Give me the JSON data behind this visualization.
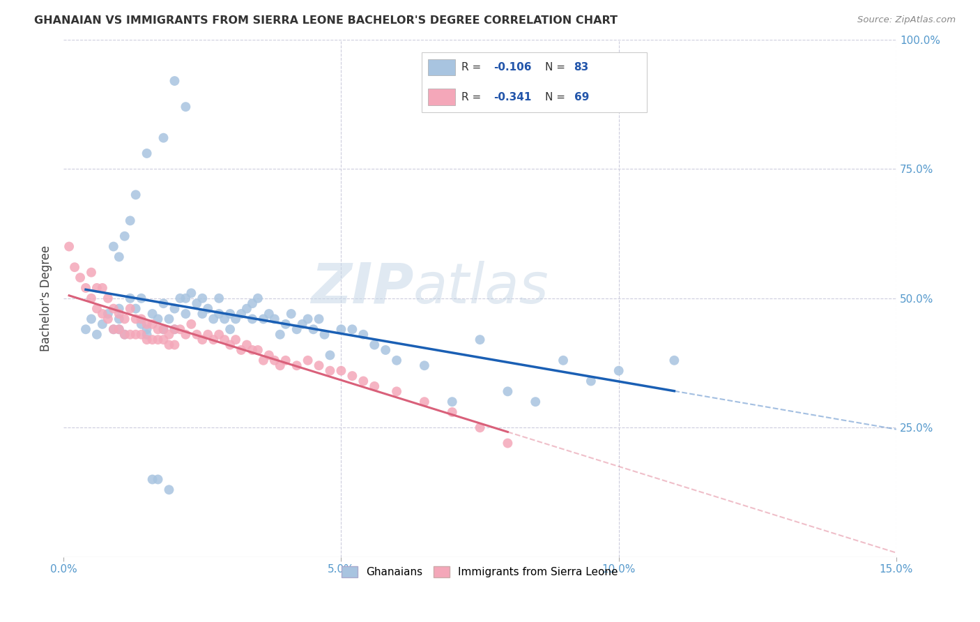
{
  "title": "GHANAIAN VS IMMIGRANTS FROM SIERRA LEONE BACHELOR'S DEGREE CORRELATION CHART",
  "source": "Source: ZipAtlas.com",
  "ylabel": "Bachelor's Degree",
  "xlim": [
    0.0,
    0.15
  ],
  "ylim": [
    0.0,
    1.0
  ],
  "xtick_labels": [
    "0.0%",
    "5.0%",
    "10.0%",
    "15.0%"
  ],
  "xtick_vals": [
    0.0,
    0.05,
    0.1,
    0.15
  ],
  "ytick_labels": [
    "25.0%",
    "50.0%",
    "75.0%",
    "100.0%"
  ],
  "ytick_vals": [
    0.25,
    0.5,
    0.75,
    1.0
  ],
  "ghanaian_color": "#a8c4e0",
  "sierra_leone_color": "#f4a7b9",
  "ghanaian_line_color": "#1a5fb4",
  "sierra_leone_line_color": "#d9607a",
  "watermark_zip": "ZIP",
  "watermark_atlas": "atlas",
  "legend_items": [
    {
      "color": "#a8c4e0",
      "R_label": "R = ",
      "R_val": "-0.106",
      "N_label": "N = ",
      "N_val": "83"
    },
    {
      "color": "#f4a7b9",
      "R_label": "R = ",
      "R_val": "-0.341",
      "N_label": "N = ",
      "N_val": "69"
    }
  ],
  "bottom_legend": [
    "Ghanaians",
    "Immigrants from Sierra Leone"
  ],
  "ghanaians_scatter_x": [
    0.004,
    0.005,
    0.006,
    0.007,
    0.008,
    0.009,
    0.01,
    0.01,
    0.01,
    0.011,
    0.012,
    0.013,
    0.014,
    0.015,
    0.015,
    0.016,
    0.017,
    0.018,
    0.018,
    0.019,
    0.02,
    0.02,
    0.021,
    0.022,
    0.022,
    0.023,
    0.024,
    0.025,
    0.025,
    0.026,
    0.027,
    0.028,
    0.028,
    0.029,
    0.03,
    0.03,
    0.031,
    0.032,
    0.033,
    0.034,
    0.034,
    0.035,
    0.036,
    0.037,
    0.038,
    0.039,
    0.04,
    0.041,
    0.042,
    0.043,
    0.044,
    0.045,
    0.046,
    0.047,
    0.048,
    0.05,
    0.052,
    0.054,
    0.056,
    0.058,
    0.06,
    0.065,
    0.07,
    0.075,
    0.08,
    0.085,
    0.09,
    0.095,
    0.1,
    0.11,
    0.02,
    0.022,
    0.018,
    0.015,
    0.013,
    0.012,
    0.011,
    0.009,
    0.01,
    0.014,
    0.016,
    0.017,
    0.019
  ],
  "ghanaians_scatter_y": [
    0.44,
    0.46,
    0.43,
    0.45,
    0.47,
    0.44,
    0.46,
    0.48,
    0.44,
    0.43,
    0.5,
    0.48,
    0.45,
    0.44,
    0.43,
    0.47,
    0.46,
    0.49,
    0.44,
    0.46,
    0.48,
    0.44,
    0.5,
    0.5,
    0.47,
    0.51,
    0.49,
    0.47,
    0.5,
    0.48,
    0.46,
    0.47,
    0.5,
    0.46,
    0.47,
    0.44,
    0.46,
    0.47,
    0.48,
    0.46,
    0.49,
    0.5,
    0.46,
    0.47,
    0.46,
    0.43,
    0.45,
    0.47,
    0.44,
    0.45,
    0.46,
    0.44,
    0.46,
    0.43,
    0.39,
    0.44,
    0.44,
    0.43,
    0.41,
    0.4,
    0.38,
    0.37,
    0.3,
    0.42,
    0.32,
    0.3,
    0.38,
    0.34,
    0.36,
    0.38,
    0.92,
    0.87,
    0.81,
    0.78,
    0.7,
    0.65,
    0.62,
    0.6,
    0.58,
    0.5,
    0.15,
    0.15,
    0.13
  ],
  "sierra_leone_scatter_x": [
    0.001,
    0.002,
    0.003,
    0.004,
    0.005,
    0.005,
    0.006,
    0.006,
    0.007,
    0.007,
    0.008,
    0.008,
    0.009,
    0.009,
    0.01,
    0.01,
    0.011,
    0.011,
    0.012,
    0.012,
    0.013,
    0.013,
    0.014,
    0.014,
    0.015,
    0.015,
    0.016,
    0.016,
    0.017,
    0.017,
    0.018,
    0.018,
    0.019,
    0.019,
    0.02,
    0.02,
    0.021,
    0.022,
    0.023,
    0.024,
    0.025,
    0.026,
    0.027,
    0.028,
    0.029,
    0.03,
    0.031,
    0.032,
    0.033,
    0.034,
    0.035,
    0.036,
    0.037,
    0.038,
    0.039,
    0.04,
    0.042,
    0.044,
    0.046,
    0.048,
    0.05,
    0.052,
    0.054,
    0.056,
    0.06,
    0.065,
    0.07,
    0.075,
    0.08
  ],
  "sierra_leone_scatter_y": [
    0.6,
    0.56,
    0.54,
    0.52,
    0.55,
    0.5,
    0.52,
    0.48,
    0.52,
    0.47,
    0.5,
    0.46,
    0.48,
    0.44,
    0.47,
    0.44,
    0.46,
    0.43,
    0.48,
    0.43,
    0.46,
    0.43,
    0.46,
    0.43,
    0.45,
    0.42,
    0.45,
    0.42,
    0.44,
    0.42,
    0.44,
    0.42,
    0.43,
    0.41,
    0.44,
    0.41,
    0.44,
    0.43,
    0.45,
    0.43,
    0.42,
    0.43,
    0.42,
    0.43,
    0.42,
    0.41,
    0.42,
    0.4,
    0.41,
    0.4,
    0.4,
    0.38,
    0.39,
    0.38,
    0.37,
    0.38,
    0.37,
    0.38,
    0.37,
    0.36,
    0.36,
    0.35,
    0.34,
    0.33,
    0.32,
    0.3,
    0.28,
    0.25,
    0.22
  ]
}
